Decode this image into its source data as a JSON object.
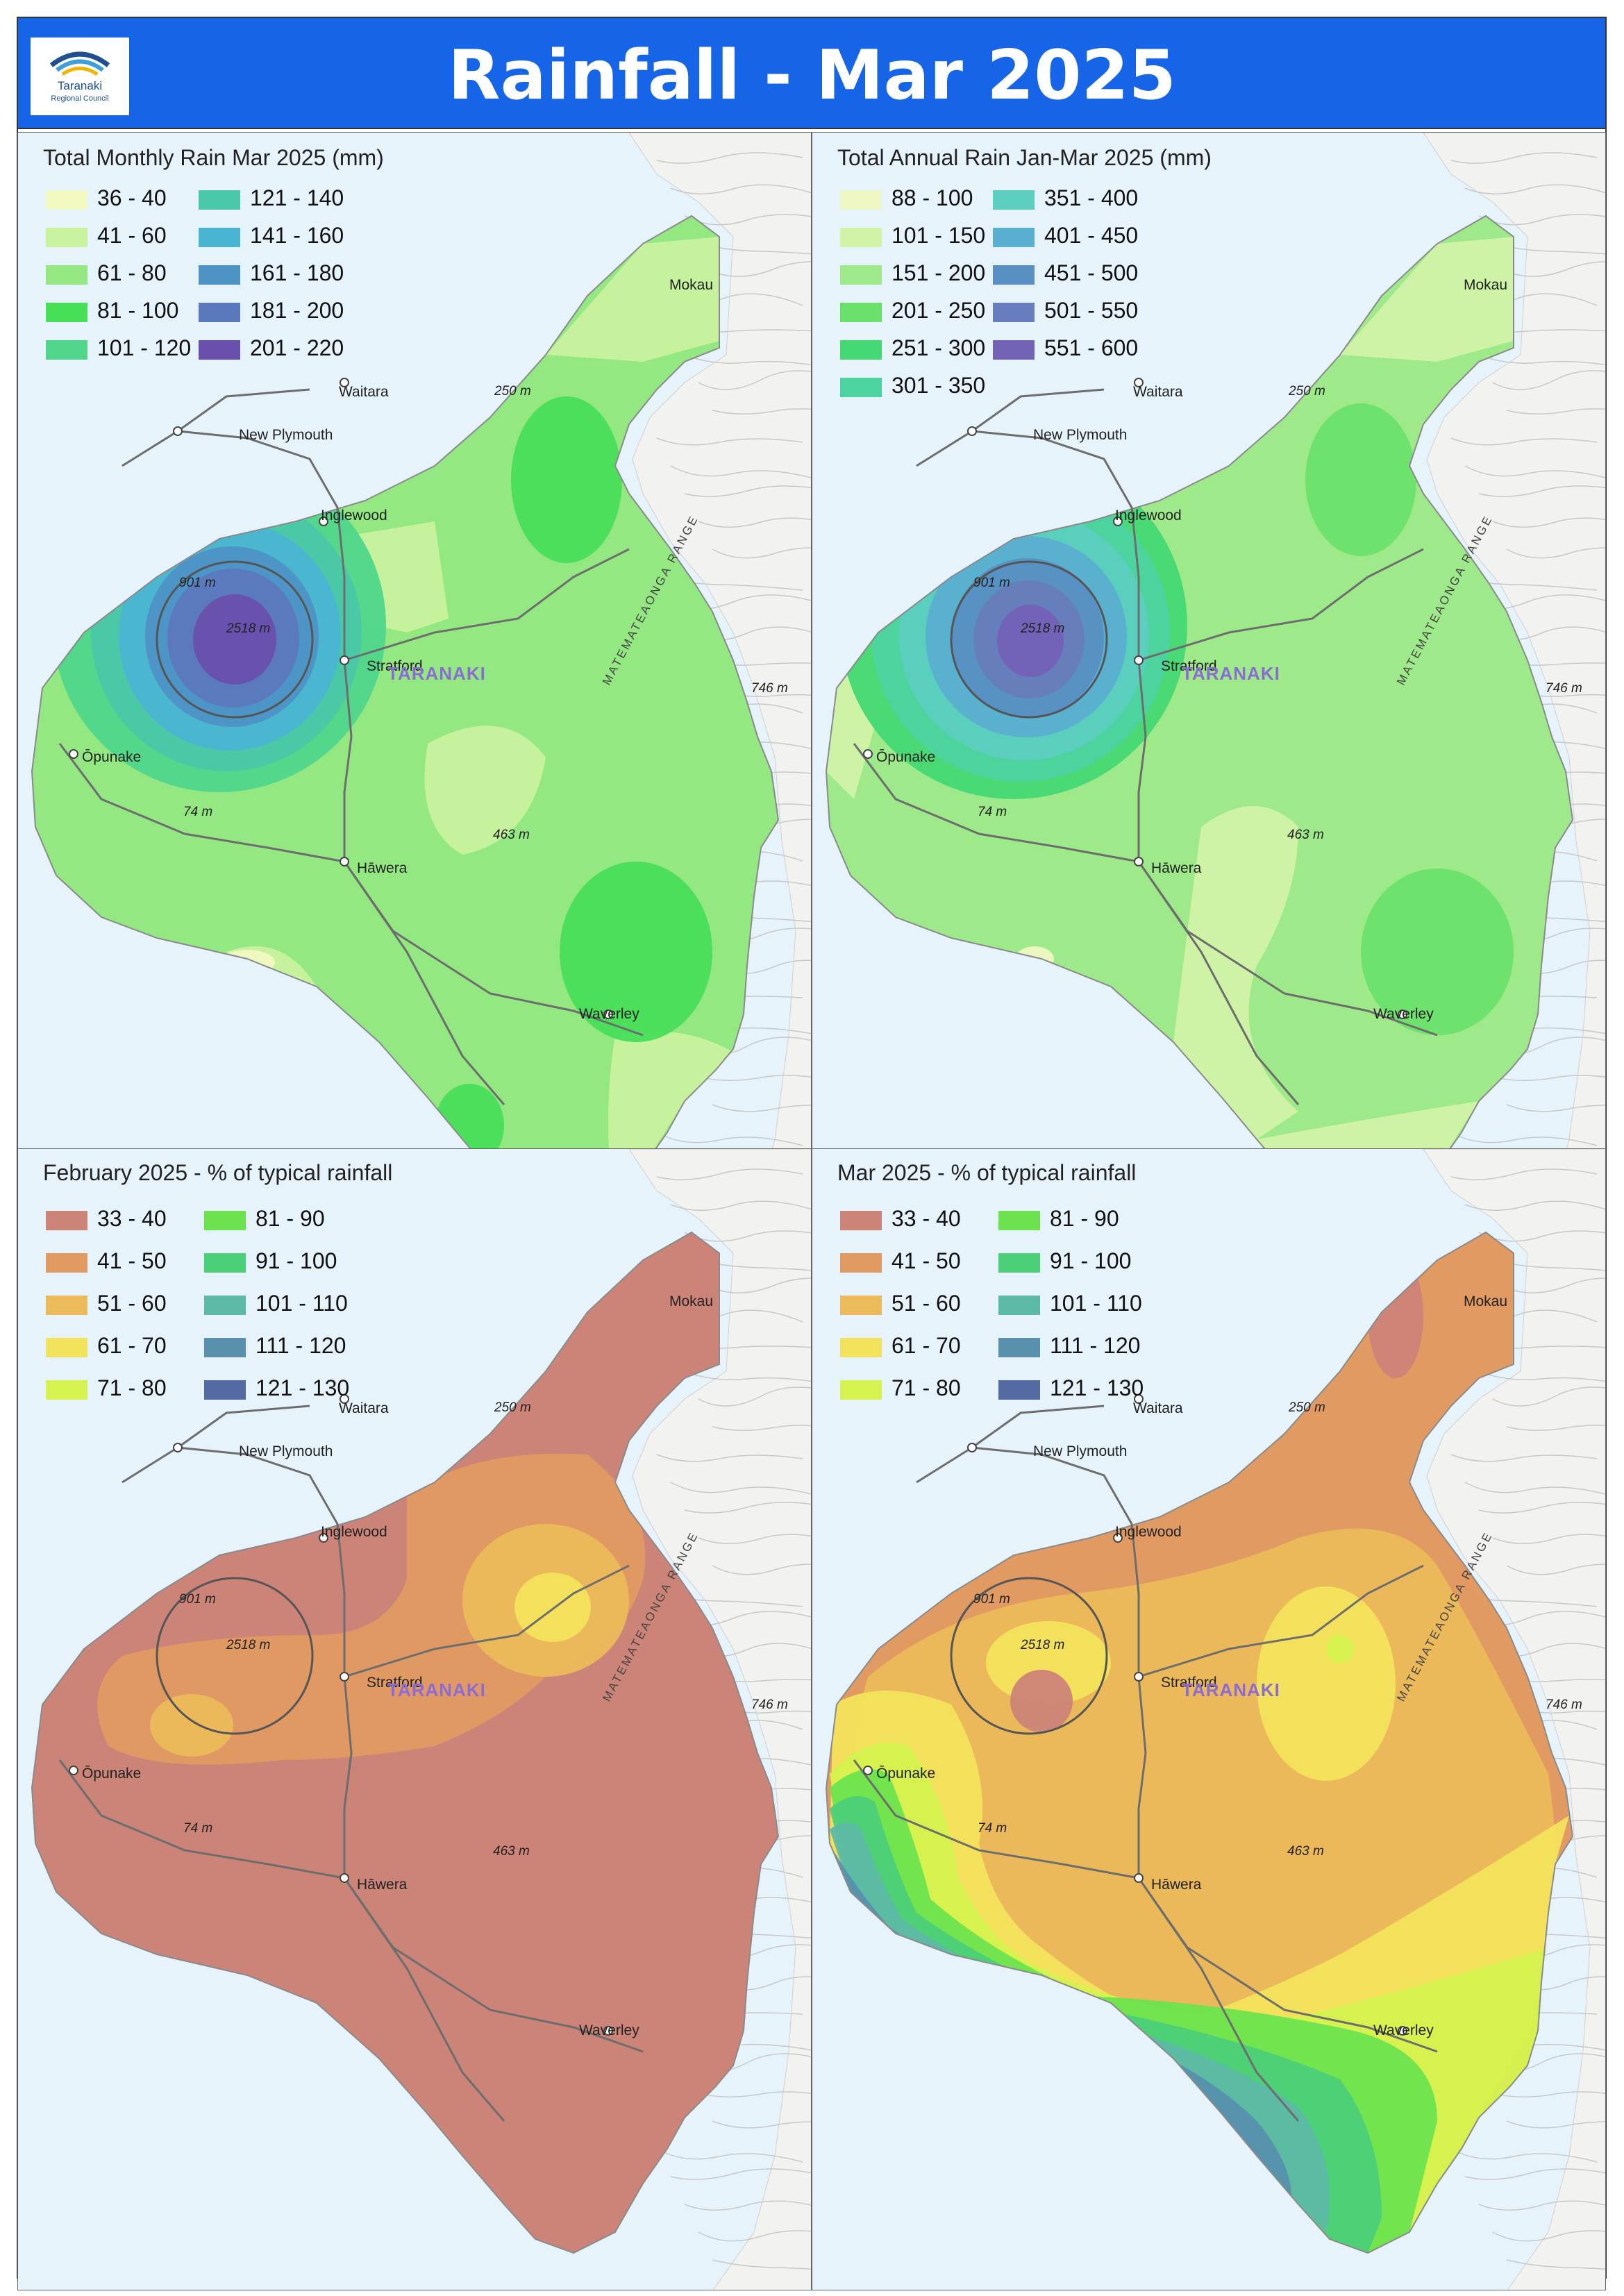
{
  "header": {
    "title": "Rainfall - Mar 2025",
    "logo_text": "Taranaki",
    "logo_subtext": "Regional Council",
    "background_color": "#1665e8"
  },
  "places": {
    "mokau": "Mokau",
    "waitara": "Waitara",
    "new_plymouth": "New Plymouth",
    "inglewood": "Inglewood",
    "stratford": "Stratford",
    "taranaki": "TARANAKI",
    "opunake": "Ōpunake",
    "hawera": "Hāwera",
    "waverley": "Waverley",
    "range": "MATEMATEAONGA RANGE",
    "elev_250": "250 m",
    "elev_901": "901 m",
    "elev_2518": "2518 m",
    "elev_746": "746 m",
    "elev_74": "74 m",
    "elev_463": "463 m"
  },
  "panels": [
    {
      "id": "monthly",
      "legend_title": "Total Monthly Rain Mar 2025 (mm)",
      "legend": [
        {
          "label": "36 - 40",
          "color": "#f1f8c0"
        },
        {
          "label": "41 - 60",
          "color": "#c8f29e"
        },
        {
          "label": "61 - 80",
          "color": "#93e882"
        },
        {
          "label": "81 - 100",
          "color": "#47de58"
        },
        {
          "label": "101 - 120",
          "color": "#4fd68a"
        },
        {
          "label": "121 - 140",
          "color": "#4bc8a8"
        },
        {
          "label": "141 - 160",
          "color": "#4ab5d2"
        },
        {
          "label": "161 - 180",
          "color": "#4d93c5"
        },
        {
          "label": "181 - 200",
          "color": "#5b78bd"
        },
        {
          "label": "201 - 220",
          "color": "#6a50ad"
        }
      ]
    },
    {
      "id": "annual",
      "legend_title": "Total Annual Rain Jan-Mar 2025 (mm)",
      "legend": [
        {
          "label": "88 - 100",
          "color": "#eff8c2"
        },
        {
          "label": "101 - 150",
          "color": "#d1f3a8"
        },
        {
          "label": "151 - 200",
          "color": "#9ee98a"
        },
        {
          "label": "201 - 250",
          "color": "#6ae16a"
        },
        {
          "label": "251 - 300",
          "color": "#44d874"
        },
        {
          "label": "301 - 350",
          "color": "#4ed4a0"
        },
        {
          "label": "351 - 400",
          "color": "#5ccfc0"
        },
        {
          "label": "401 - 450",
          "color": "#5aaed0"
        },
        {
          "label": "451 - 500",
          "color": "#5890c3"
        },
        {
          "label": "501 - 550",
          "color": "#687dbd"
        },
        {
          "label": "551 - 600",
          "color": "#7462b7"
        }
      ]
    },
    {
      "id": "feb_pct",
      "legend_title": "February 2025 - % of typical rainfall",
      "legend": [
        {
          "label": "33 - 40",
          "color": "#cc8378"
        },
        {
          "label": "41 - 50",
          "color": "#e09a62"
        },
        {
          "label": "51 - 60",
          "color": "#ebbb5a"
        },
        {
          "label": "61 - 70",
          "color": "#f3e35c"
        },
        {
          "label": "71 - 80",
          "color": "#d5f24e"
        },
        {
          "label": "81 - 90",
          "color": "#6ce34e"
        },
        {
          "label": "91 - 100",
          "color": "#4bcf78"
        },
        {
          "label": "101 - 110",
          "color": "#5cb9a5"
        },
        {
          "label": "111 - 120",
          "color": "#5890ae"
        },
        {
          "label": "121 - 130",
          "color": "#5269a2"
        }
      ]
    },
    {
      "id": "mar_pct",
      "legend_title": "Mar 2025 - % of typical rainfall",
      "legend": [
        {
          "label": "33 - 40",
          "color": "#cc8378"
        },
        {
          "label": "41 - 50",
          "color": "#e09a62"
        },
        {
          "label": "51 - 60",
          "color": "#ebbb5a"
        },
        {
          "label": "61 - 70",
          "color": "#f3e35c"
        },
        {
          "label": "71 - 80",
          "color": "#d5f24e"
        },
        {
          "label": "81 - 90",
          "color": "#6ce34e"
        },
        {
          "label": "91 - 100",
          "color": "#4bcf78"
        },
        {
          "label": "101 - 110",
          "color": "#5cb9a5"
        },
        {
          "label": "111 - 120",
          "color": "#5890ae"
        },
        {
          "label": "121 - 130",
          "color": "#5269a2"
        }
      ]
    }
  ]
}
